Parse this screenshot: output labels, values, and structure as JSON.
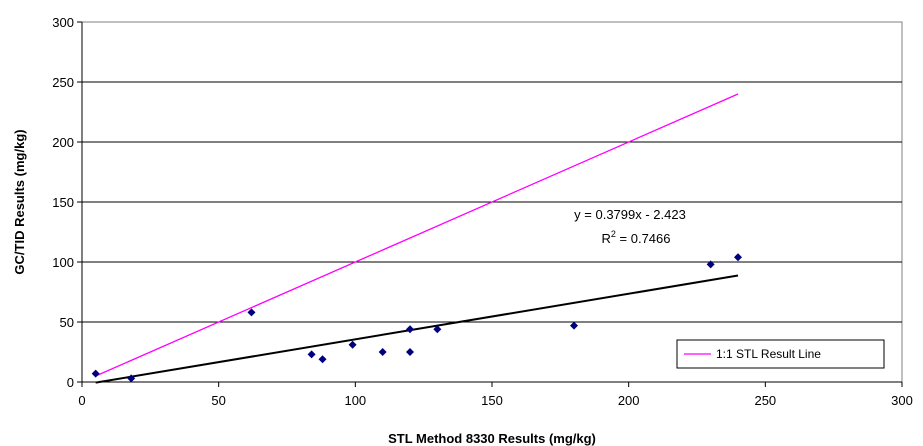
{
  "chart_data": {
    "type": "scatter",
    "xlabel": "STL Method 8330 Results (mg/kg)",
    "ylabel": "GC/TID Results (mg/kg)",
    "xlim": [
      0,
      300
    ],
    "ylim": [
      0,
      300
    ],
    "x_ticks": [
      "0",
      "50",
      "100",
      "150",
      "200",
      "250",
      "300"
    ],
    "y_ticks": [
      "0",
      "50",
      "100",
      "150",
      "200",
      "250",
      "300"
    ],
    "grid": "horizontal",
    "legend_position": "bottom-right",
    "colors": {
      "points": "#00007f",
      "one_to_one": "#ff00ff",
      "trend": "#000000"
    },
    "points": [
      {
        "x": 5,
        "y": 7
      },
      {
        "x": 18,
        "y": 3
      },
      {
        "x": 62,
        "y": 58
      },
      {
        "x": 84,
        "y": 23
      },
      {
        "x": 88,
        "y": 19
      },
      {
        "x": 99,
        "y": 31
      },
      {
        "x": 110,
        "y": 25
      },
      {
        "x": 120,
        "y": 44
      },
      {
        "x": 120,
        "y": 25
      },
      {
        "x": 130,
        "y": 44
      },
      {
        "x": 180,
        "y": 47
      },
      {
        "x": 230,
        "y": 98
      },
      {
        "x": 240,
        "y": 104
      }
    ],
    "one_to_one_line": {
      "name": "1:1 STL Result Line",
      "x": [
        5,
        240
      ],
      "y": [
        5,
        240
      ]
    },
    "trendline": {
      "slope": 0.3799,
      "intercept": -2.423,
      "x": [
        5,
        240
      ]
    },
    "equation_text": "y = 0.3799x - 2.423",
    "r2_label": "R",
    "r2_sup": "2",
    "r2_value": " = 0.7466"
  }
}
